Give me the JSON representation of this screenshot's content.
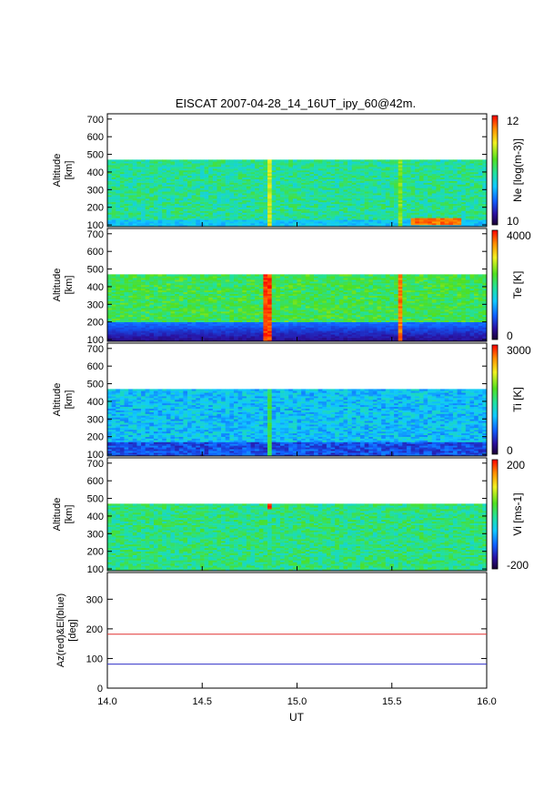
{
  "chart_data": {
    "type": "heatmap",
    "title": "EISCAT 2007-04-28_14_16UT_ipy_60@42m.",
    "xlabel": "UT",
    "x_ticks": [
      "14.0",
      "14.5",
      "15.0",
      "15.5",
      "16.0"
    ],
    "xlim": [
      14.0,
      16.0
    ],
    "data_altitude_range_km": [
      90,
      470
    ],
    "panels": [
      {
        "id": "ne",
        "ylabel": [
          "Altitude",
          "[km]"
        ],
        "ylim": [
          90,
          730
        ],
        "y_ticks": [
          "100",
          "200",
          "300",
          "400",
          "500",
          "600",
          "700"
        ],
        "colorbar_label": "Ne [log(m-3)]",
        "colorbar_ticks": [
          "12",
          "10"
        ],
        "colorbar_range": [
          10,
          12
        ],
        "colormap": "rainbow",
        "background_level": 0.48,
        "features": [
          {
            "x_start": 14.83,
            "x_end": 14.86,
            "level": 0.72
          },
          {
            "x_start": 15.52,
            "x_end": 15.54,
            "level": 0.65
          },
          {
            "x_start": 15.6,
            "x_end": 15.85,
            "alt_min": 100,
            "alt_max": 130,
            "level": 0.9
          }
        ]
      },
      {
        "id": "te",
        "ylabel": [
          "Altitude",
          "[km]"
        ],
        "ylim": [
          90,
          730
        ],
        "y_ticks": [
          "100",
          "200",
          "300",
          "400",
          "500",
          "600",
          "700"
        ],
        "colorbar_label": "Te [K]",
        "colorbar_ticks": [
          "4000",
          "0"
        ],
        "colorbar_range": [
          0,
          4000
        ],
        "colormap": "rainbow",
        "background_level": 0.55,
        "features": [
          {
            "x_start": 14.82,
            "x_end": 14.86,
            "level": 0.95
          },
          {
            "x_start": 15.52,
            "x_end": 15.54,
            "level": 0.9
          }
        ]
      },
      {
        "id": "ti",
        "ylabel": [
          "Altitude",
          "[km]"
        ],
        "ylim": [
          90,
          730
        ],
        "y_ticks": [
          "100",
          "200",
          "300",
          "400",
          "500",
          "600",
          "700"
        ],
        "colorbar_label": "Ti [K]",
        "colorbar_ticks": [
          "3000",
          "0"
        ],
        "colorbar_range": [
          0,
          3000
        ],
        "colormap": "rainbow",
        "background_level": 0.35,
        "features": [
          {
            "x_start": 14.83,
            "x_end": 14.86,
            "level": 0.55
          }
        ]
      },
      {
        "id": "vi",
        "ylabel": [
          "Altitude",
          "[km]"
        ],
        "ylim": [
          90,
          730
        ],
        "y_ticks": [
          "100",
          "200",
          "300",
          "400",
          "500",
          "600",
          "700"
        ],
        "colorbar_label": "Vi [ms-1]",
        "colorbar_ticks": [
          "200",
          "-200"
        ],
        "colorbar_range": [
          -200,
          200
        ],
        "colormap": "rainbow",
        "background_level": 0.5,
        "features": [
          {
            "x_start": 14.83,
            "x_end": 14.86,
            "alt_min": 440,
            "alt_max": 470,
            "level": 0.95
          }
        ]
      }
    ],
    "line_panel": {
      "ylabel": [
        "Az(red)&El(blue)",
        "[deg]"
      ],
      "ylim": [
        0,
        390
      ],
      "y_ticks": [
        "0",
        "100",
        "200",
        "300"
      ],
      "series": [
        {
          "name": "Az",
          "color": "#e03030",
          "x": [
            14.0,
            16.0
          ],
          "y": [
            182,
            182
          ]
        },
        {
          "name": "El",
          "color": "#3030c8",
          "x": [
            14.0,
            16.0
          ],
          "y": [
            81,
            81
          ]
        }
      ]
    }
  }
}
